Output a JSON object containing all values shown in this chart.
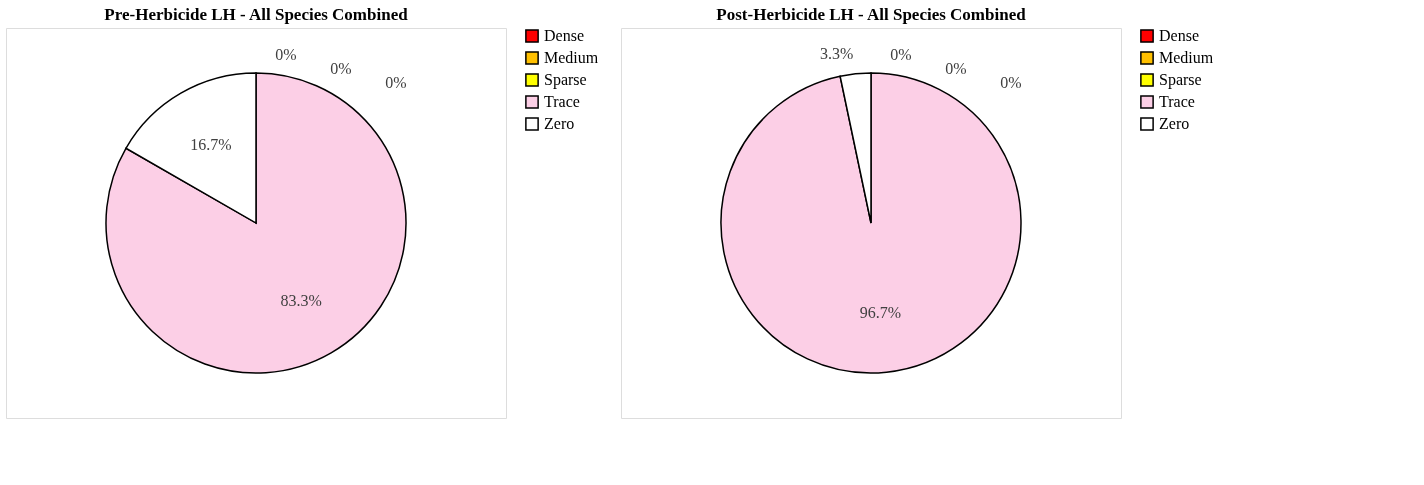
{
  "chart_data": [
    {
      "type": "pie",
      "title": "Pre-Herbicide LH - All Species Combined",
      "categories": [
        "Dense",
        "Medium",
        "Sparse",
        "Trace",
        "Zero"
      ],
      "values": [
        0,
        0,
        0,
        83.3,
        16.7
      ],
      "colors": [
        "#ff0000",
        "#ffc000",
        "#ffff00",
        "#fccfe6",
        "#ffffff"
      ],
      "value_labels": [
        "0%",
        "0%",
        "0%",
        "83.3%",
        "16.7%"
      ],
      "legend": "right"
    },
    {
      "type": "pie",
      "title": "Post-Herbicide LH - All Species Combined",
      "categories": [
        "Dense",
        "Medium",
        "Sparse",
        "Trace",
        "Zero"
      ],
      "values": [
        0,
        0,
        0,
        96.7,
        3.3
      ],
      "colors": [
        "#ff0000",
        "#ffc000",
        "#ffff00",
        "#fccfe6",
        "#ffffff"
      ],
      "value_labels": [
        "0%",
        "0%",
        "0%",
        "96.7%",
        "3.3%"
      ],
      "legend": "right"
    }
  ]
}
